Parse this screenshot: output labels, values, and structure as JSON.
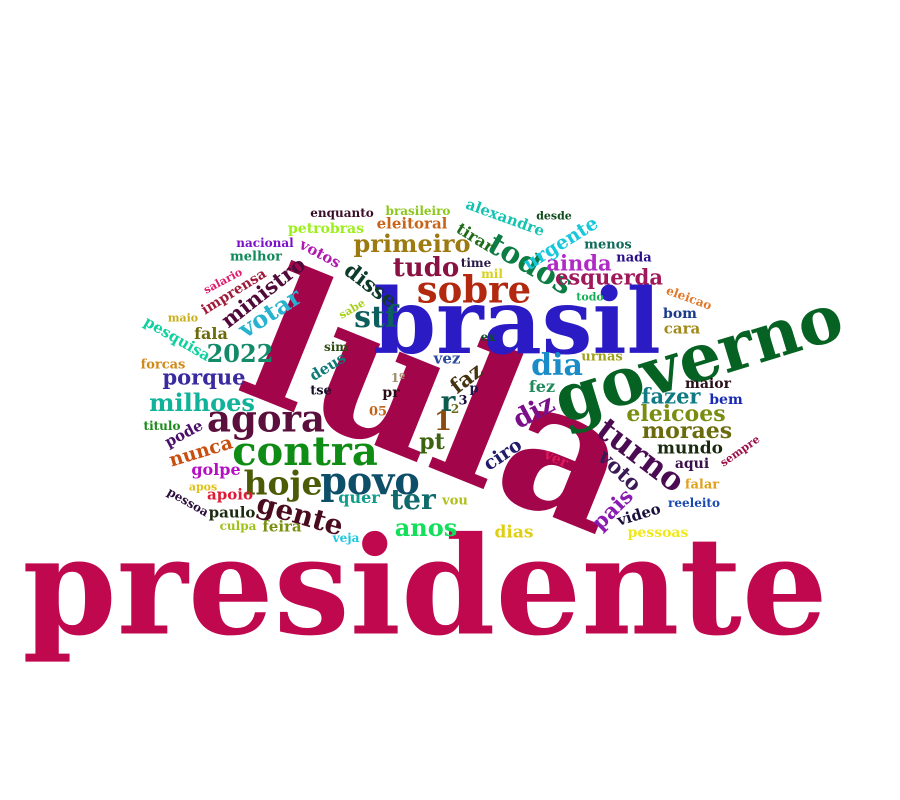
{
  "words": [
    {
      "text": "presidente",
      "color": "#c0084f"
    },
    {
      "text": "lula",
      "color": "#a2054a"
    },
    {
      "text": "brasil",
      "color": "#2b1bc4"
    },
    {
      "text": "governo",
      "color": "#066223"
    },
    {
      "text": "contra",
      "color": "#0f8c14"
    },
    {
      "text": "povo",
      "color": "#0d4e68"
    },
    {
      "text": "sobre",
      "color": "#b3290f"
    },
    {
      "text": "agora",
      "color": "#5a0f3c"
    },
    {
      "text": "hoje",
      "color": "#4c5c06"
    },
    {
      "text": "turno",
      "color": "#4a0b52"
    },
    {
      "text": "todos",
      "color": "#0c7d43"
    },
    {
      "text": "gente",
      "color": "#4a0b1e"
    },
    {
      "text": "primeiro",
      "color": "#9c7a10"
    },
    {
      "text": "tudo",
      "color": "#8a1242"
    },
    {
      "text": "stf",
      "color": "#0d5f5e"
    },
    {
      "text": "dia",
      "color": "#1a8dc9"
    },
    {
      "text": "ter",
      "color": "#0f6b6b"
    },
    {
      "text": "eleicoes",
      "color": "#7a8d10"
    },
    {
      "text": "moraes",
      "color": "#6b6a0c"
    },
    {
      "text": "ainda",
      "color": "#b02ac6"
    },
    {
      "text": "esquerda",
      "color": "#a0185a"
    },
    {
      "text": "votar",
      "color": "#27b3d0"
    },
    {
      "text": "ministro",
      "color": "#4f0a3a"
    },
    {
      "text": "milhoes",
      "color": "#10b39a"
    },
    {
      "text": "2022",
      "color": "#138a69"
    },
    {
      "text": "porque",
      "color": "#3a2aa0"
    },
    {
      "text": "anos",
      "color": "#13e05a"
    },
    {
      "text": "disse",
      "color": "#0d3a2a"
    },
    {
      "text": "fazer",
      "color": "#0f7a84"
    },
    {
      "text": "diz",
      "color": "#7b0f8a"
    },
    {
      "text": "urgente",
      "color": "#18c7dc"
    },
    {
      "text": "voto",
      "color": "#3a1a55"
    },
    {
      "text": "pais",
      "color": "#8a1bb0"
    },
    {
      "text": "pt",
      "color": "#3a620f"
    },
    {
      "text": "r",
      "color": "#0f5a4f"
    },
    {
      "text": "1",
      "color": "#8a4a10"
    },
    {
      "text": "faz",
      "color": "#463310"
    },
    {
      "text": "nunca",
      "color": "#c84f0f"
    },
    {
      "text": "ciro",
      "color": "#221a6a"
    },
    {
      "text": "tirar",
      "color": "#1f6b1a"
    },
    {
      "text": "alexandre",
      "color": "#16c2b0"
    },
    {
      "text": "mundo",
      "color": "#1a2a0f"
    },
    {
      "text": "dias",
      "color": "#e0cf10"
    },
    {
      "text": "quer",
      "color": "#0f9c8a"
    },
    {
      "text": "fez",
      "color": "#1f8a5a"
    },
    {
      "text": "fala",
      "color": "#6b6a0c"
    },
    {
      "text": "golpe",
      "color": "#b50fc3"
    },
    {
      "text": "apoio",
      "color": "#e01a34"
    },
    {
      "text": "paulo",
      "color": "#1a2a10"
    },
    {
      "text": "feira",
      "color": "#7a8f10"
    },
    {
      "text": "video",
      "color": "#1a0f3a"
    },
    {
      "text": "pesquisa",
      "color": "#10d0a0"
    },
    {
      "text": "imprensa",
      "color": "#a01a3a"
    },
    {
      "text": "deus",
      "color": "#0f7a7a"
    },
    {
      "text": "vez",
      "color": "#2a4aa0"
    },
    {
      "text": "pode",
      "color": "#4a0f6a"
    },
    {
      "text": "votos",
      "color": "#b01ab0"
    },
    {
      "text": "eleitoral",
      "color": "#c8641a"
    },
    {
      "text": "petrobras",
      "color": "#9cf01a"
    },
    {
      "text": "melhor",
      "color": "#0f8a5a"
    },
    {
      "text": "nacional",
      "color": "#7a10c8"
    },
    {
      "text": "enquanto",
      "color": "#3a0f2a"
    },
    {
      "text": "brasileiro",
      "color": "#8ac81a"
    },
    {
      "text": "desde",
      "color": "#0f4a1a"
    },
    {
      "text": "menos",
      "color": "#0f6a5a"
    },
    {
      "text": "nada",
      "color": "#2a0f8a"
    },
    {
      "text": "mil",
      "color": "#d8d01a"
    },
    {
      "text": "time",
      "color": "#2a1a4a"
    },
    {
      "text": "todo",
      "color": "#1ab05a"
    },
    {
      "text": "eleicao",
      "color": "#e0782a"
    },
    {
      "text": "bom",
      "color": "#1a3a8a"
    },
    {
      "text": "cara",
      "color": "#a08a1a"
    },
    {
      "text": "urnas",
      "color": "#a0a01a"
    },
    {
      "text": "maior",
      "color": "#2a0f1a"
    },
    {
      "text": "bem",
      "color": "#1a2ab0"
    },
    {
      "text": "aqui",
      "color": "#3a0f4a"
    },
    {
      "text": "sempre",
      "color": "#9a0f4a"
    },
    {
      "text": "falar",
      "color": "#e0a01a"
    },
    {
      "text": "reeleito",
      "color": "#1a4ab0"
    },
    {
      "text": "pessoas",
      "color": "#f0e81a"
    },
    {
      "text": "ver",
      "color": "#e01a5a"
    },
    {
      "text": "vou",
      "color": "#b0c01a"
    },
    {
      "text": "veja",
      "color": "#1ac8e0"
    },
    {
      "text": "culpa",
      "color": "#a0c01a"
    },
    {
      "text": "apos",
      "color": "#e0c01a"
    },
    {
      "text": "pessoa",
      "color": "#2a0f3a"
    },
    {
      "text": "titulo",
      "color": "#1a8a1a"
    },
    {
      "text": "forcas",
      "color": "#d08a1a"
    },
    {
      "text": "maio",
      "color": "#c8b01a"
    },
    {
      "text": "salario",
      "color": "#e01a6a"
    },
    {
      "text": "sabe",
      "color": "#a8d01a"
    },
    {
      "text": "sim",
      "color": "#2a4a0f"
    },
    {
      "text": "tse",
      "color": "#1a0f2a"
    },
    {
      "text": "1º",
      "color": "#a08a6a"
    },
    {
      "text": "pr",
      "color": "#2a0f1a"
    },
    {
      "text": "05",
      "color": "#c0641a"
    },
    {
      "text": "p",
      "color": "#1a1a4a"
    },
    {
      "text": "3",
      "color": "#1a0f3a"
    },
    {
      "text": "2",
      "color": "#6a6a1a"
    },
    {
      "text": "ex",
      "color": "#0f4a2a"
    }
  ]
}
